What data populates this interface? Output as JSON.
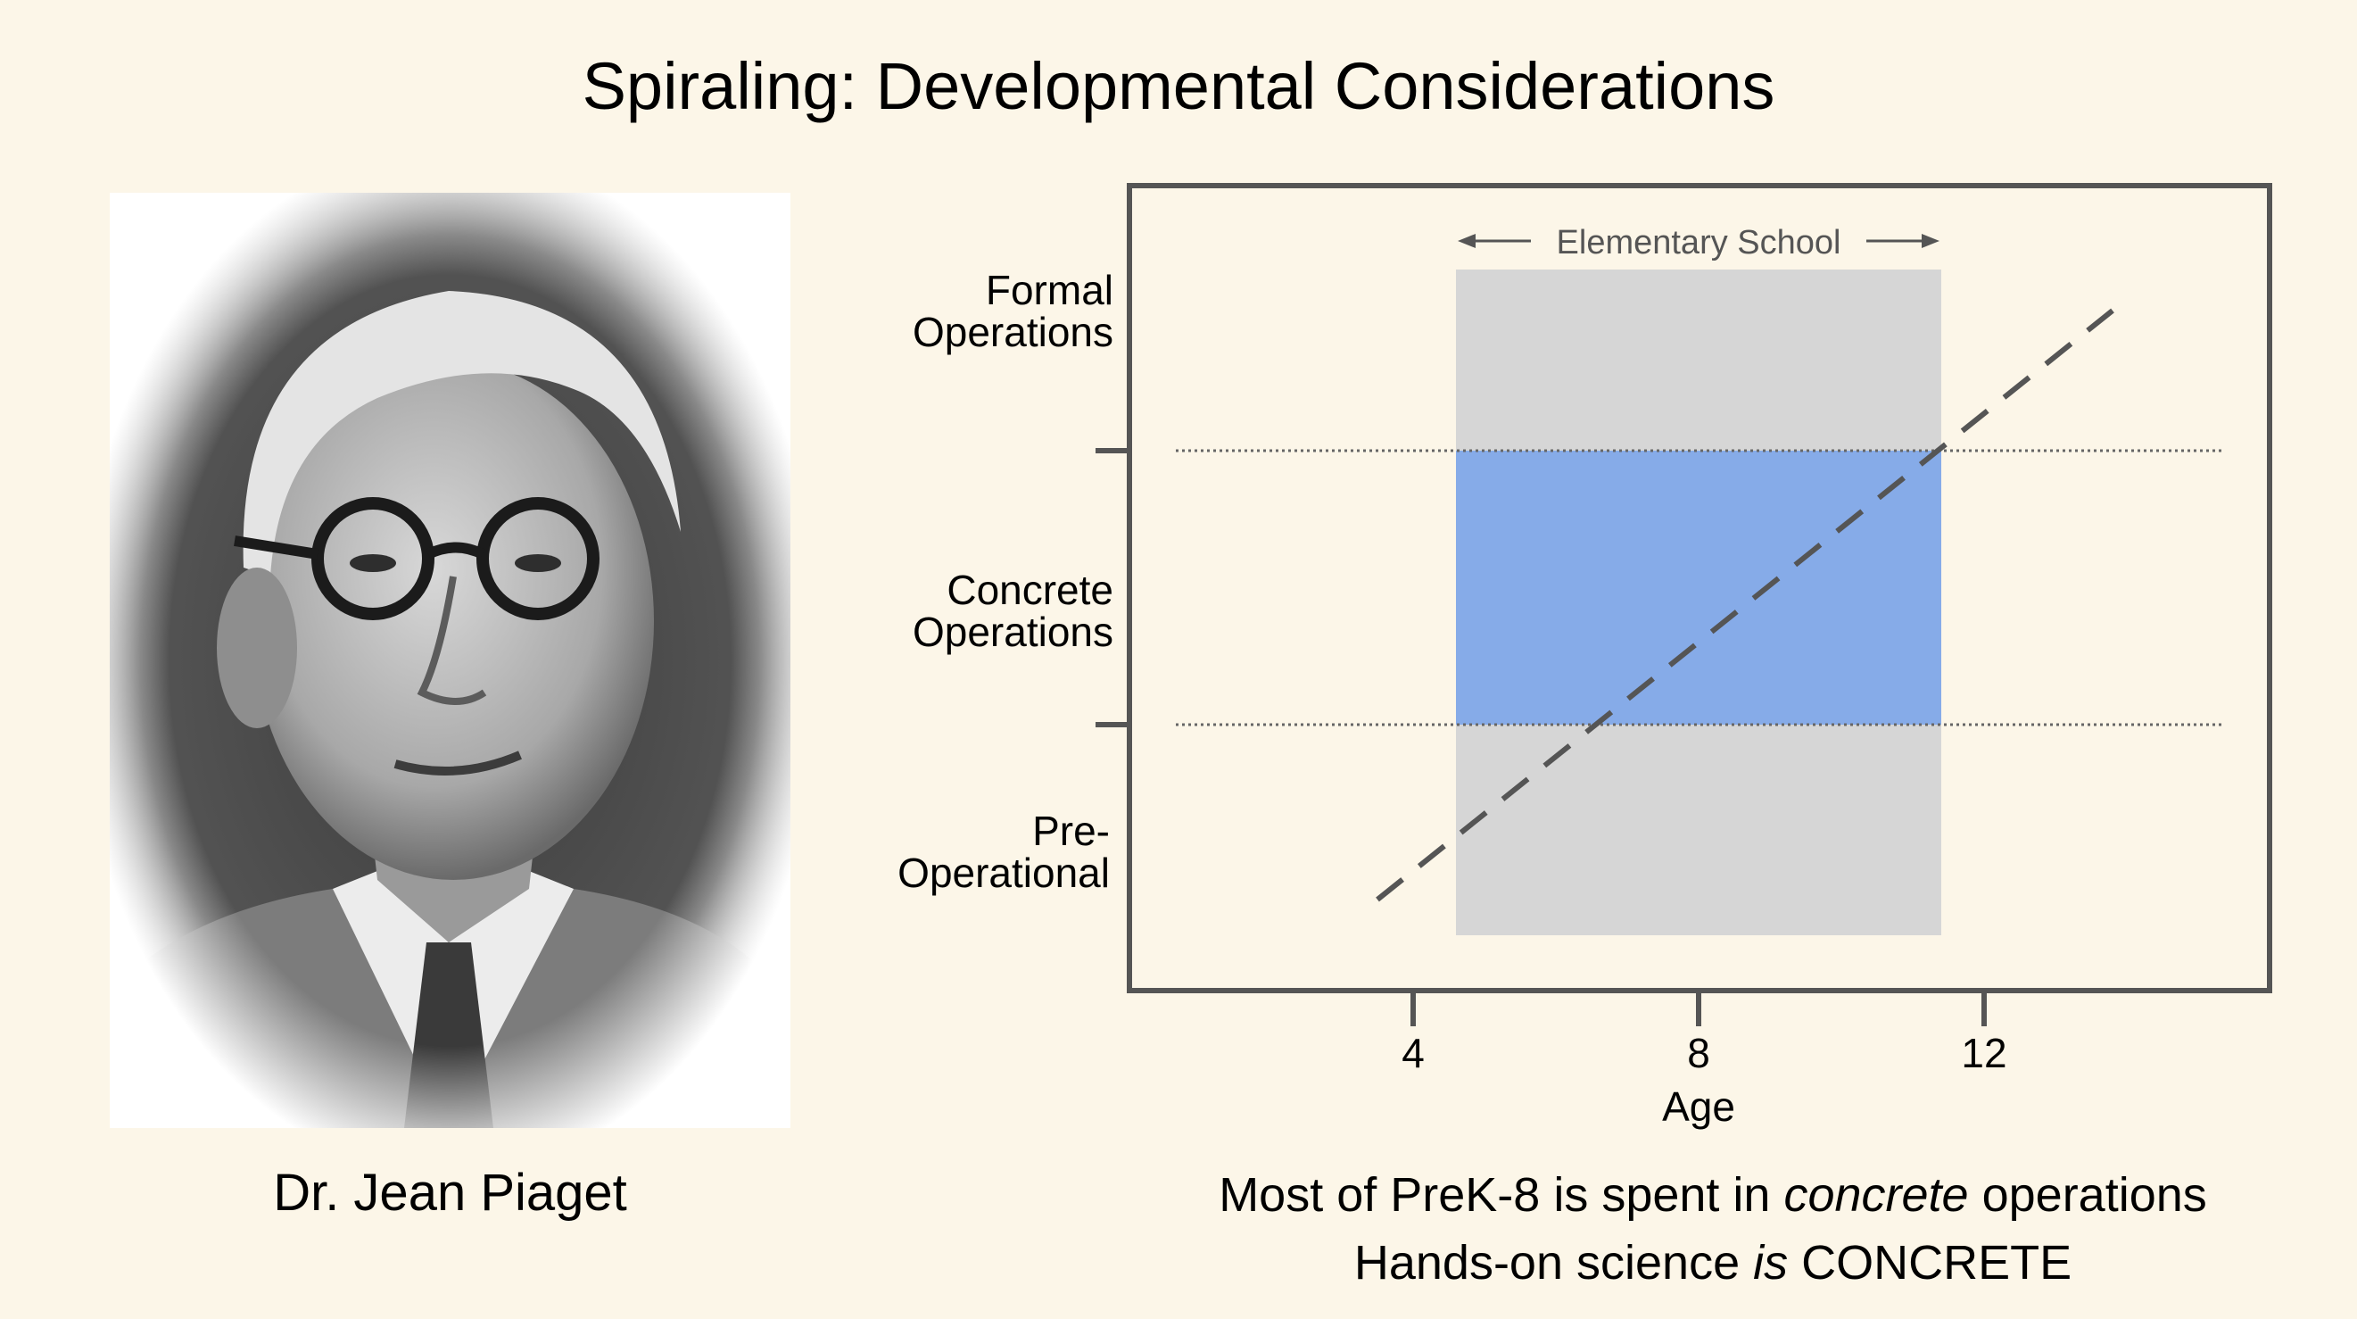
{
  "slide": {
    "title": "Spiraling: Developmental Considerations",
    "portrait_caption": "Dr. Jean Piaget"
  },
  "chart_data": {
    "type": "diagram",
    "x_label": "Age",
    "x_ticks": [
      4,
      8,
      12
    ],
    "band_label": "Elementary School",
    "band_x_range": [
      4.6,
      11.4
    ],
    "stages": [
      {
        "lines": [
          "Formal",
          "Operations"
        ]
      },
      {
        "lines": [
          "Concrete",
          "Operations"
        ]
      },
      {
        "lines": [
          "Pre-",
          "Operational"
        ]
      }
    ],
    "trend": {
      "style": "dashed",
      "from_age": 3.5,
      "to_age": 13.8
    },
    "colors": {
      "band": "#d6d6d6",
      "highlight": "#86abe8",
      "axis": "#555555",
      "trend": "#555555"
    }
  },
  "footnote": {
    "line1_a": "Most of PreK-8 is spent in ",
    "line1_em": "concrete",
    "line1_b": " operations",
    "line2_a": "Hands-on science ",
    "line2_em": "is",
    "line2_b": " CONCRETE"
  }
}
